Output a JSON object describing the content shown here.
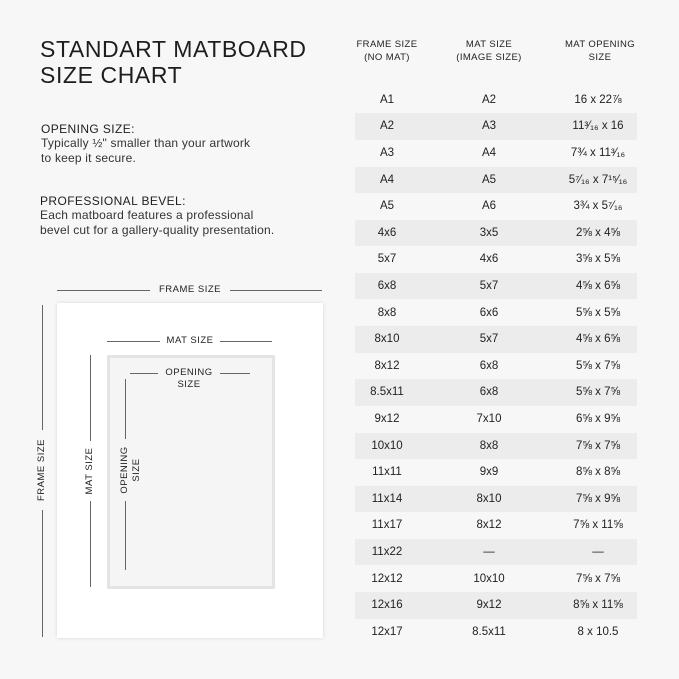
{
  "title_lines": [
    "STANDART MATBOARD",
    "SIZE CHART"
  ],
  "sections": [
    {
      "heading": "OPENING SIZE:",
      "lines": [
        "Typically ½\" smaller than your artwork",
        "to keep it secure."
      ]
    },
    {
      "heading": "PROFESSIONAL BEVEL:",
      "lines": [
        "Each matboard features a professional",
        "bevel cut for a gallery-quality presentation."
      ]
    }
  ],
  "diagram": {
    "frame_label": "FRAME SIZE",
    "mat_label": "MAT SIZE",
    "opening_label_lines": [
      "OPENING",
      "SIZE"
    ]
  },
  "table": {
    "headers": [
      [
        "FRAME SIZE",
        "(NO MAT)"
      ],
      [
        "MAT SIZE",
        "(IMAGE SIZE)"
      ],
      [
        "MAT OPENING",
        "SIZE"
      ]
    ],
    "rows": [
      [
        "A1",
        "A2",
        "16 x 22⅞"
      ],
      [
        "A2",
        "A3",
        "11³⁄₁₆ x 16"
      ],
      [
        "A3",
        "A4",
        "7¾ x 11³⁄₁₆"
      ],
      [
        "A4",
        "A5",
        "5⁷⁄₁₆ x 7¹⁵⁄₁₆"
      ],
      [
        "A5",
        "A6",
        "3¾ x 5⁷⁄₁₆"
      ],
      [
        "4x6",
        "3x5",
        "2⅝ x 4⅝"
      ],
      [
        "5x7",
        "4x6",
        "3⅝ x 5⅝"
      ],
      [
        "6x8",
        "5x7",
        "4⅝ x 6⅝"
      ],
      [
        "8x8",
        "6x6",
        "5⅝ x 5⅝"
      ],
      [
        "8x10",
        "5x7",
        "4⅝ x 6⅝"
      ],
      [
        "8x12",
        "6x8",
        "5⅝ x 7⅝"
      ],
      [
        "8.5x11",
        "6x8",
        "5⅝ x 7⅝"
      ],
      [
        "9x12",
        "7x10",
        "6⅝ x 9⅝"
      ],
      [
        "10x10",
        "8x8",
        "7⅝ x 7⅝"
      ],
      [
        "11x11",
        "9x9",
        "8⅝ x 8⅝"
      ],
      [
        "11x14",
        "8x10",
        "7⅝ x 9⅝"
      ],
      [
        "11x17",
        "8x12",
        "7⅝ x 11⅝"
      ],
      [
        "11x22",
        "—",
        "—"
      ],
      [
        "12x12",
        "10x10",
        "7⅝ x 7⅝"
      ],
      [
        "12x16",
        "9x12",
        "8⅝ x 11⅝"
      ],
      [
        "12x17",
        "8.5x11",
        "8 x 10.5"
      ]
    ]
  },
  "colors": {
    "background": "#f7f7f7",
    "stripe": "#ececec",
    "text": "#1e1e1e",
    "mat": "#ffffff"
  }
}
